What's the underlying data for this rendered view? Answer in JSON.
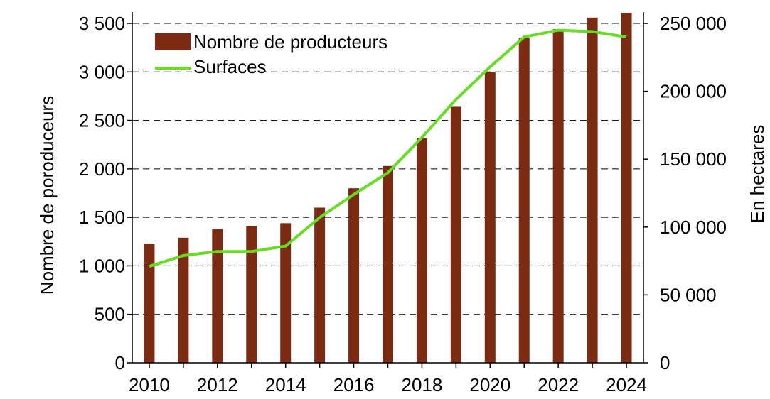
{
  "chart_data": {
    "type": "bar",
    "title": "",
    "x": [
      2010,
      2011,
      2012,
      2013,
      2014,
      2015,
      2016,
      2017,
      2018,
      2019,
      2020,
      2021,
      2022,
      2023,
      2024
    ],
    "x_tick_labels": [
      "2010",
      "2012",
      "2014",
      "2016",
      "2018",
      "2020",
      "2022",
      "2024"
    ],
    "y_left": {
      "label": "Nombre de poroduceurs",
      "ylim": [
        0,
        3500
      ],
      "ticks": [
        0,
        500,
        1000,
        1500,
        2000,
        2500,
        3000,
        3500
      ],
      "tick_labels": [
        "0",
        "500",
        "1 000",
        "1 500",
        "2 000",
        "2 500",
        "3 000",
        "3 500"
      ]
    },
    "y_right": {
      "label": "En hectares",
      "ylim": [
        0,
        250000
      ],
      "ticks": [
        0,
        50000,
        100000,
        150000,
        200000,
        250000
      ],
      "tick_labels": [
        "0",
        "50 000",
        "100 000",
        "150 000",
        "200 000",
        "250 000"
      ]
    },
    "grid": "horizontal dashed",
    "legend_position": "top-left",
    "series": [
      {
        "name": "Nombre de producteurs",
        "type": "bar",
        "axis": "left",
        "color": "#7b2b12",
        "values": [
          1230,
          1290,
          1380,
          1410,
          1440,
          1600,
          1800,
          2030,
          2320,
          2640,
          3000,
          3350,
          3440,
          3560,
          3610
        ]
      },
      {
        "name": "Surfaces",
        "type": "line",
        "axis": "right",
        "color": "#66dd22",
        "values": [
          71000,
          79000,
          82000,
          82000,
          86000,
          107000,
          124000,
          140000,
          166000,
          194000,
          218000,
          240000,
          245000,
          244000,
          240000
        ]
      }
    ]
  }
}
